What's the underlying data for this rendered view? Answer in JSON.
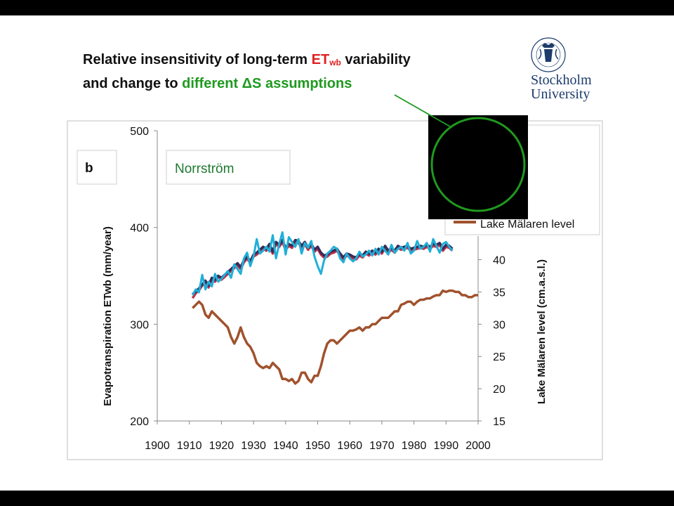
{
  "title": {
    "line1_prefix": "Relative insensitivity of long-term ",
    "line1_et": "ET",
    "line1_sub": "wb",
    "line1_suffix": " variability",
    "line2_prefix": "and change to ",
    "line2_green": "different ΔS assumptions"
  },
  "logo": {
    "line1": "Stockholm",
    "line2": "University",
    "seal_text": "UNIVERSITET · STOCKHOLMS"
  },
  "colors": {
    "et_dark": "#3a2a55",
    "et_red": "#c0304a",
    "et_cyan": "#1fb0d8",
    "lake": "#a0522d",
    "accent_green": "#1f9a1f"
  },
  "chart_data": {
    "type": "line",
    "panel_label": "b",
    "station_label": "Norrström",
    "xlabel": "",
    "ylabel_left": "Evapotranspiration ETwb (mm/year)",
    "ylabel_right": "Lake Mälaren level (cm.a.s.l.)",
    "xlim": [
      1900,
      2000
    ],
    "ylim_left": [
      200,
      500
    ],
    "ylim_right": [
      15,
      60
    ],
    "x_ticks": [
      1900,
      1910,
      1920,
      1930,
      1940,
      1950,
      1960,
      1970,
      1980,
      1990,
      2000
    ],
    "y_left_ticks": [
      200,
      300,
      400,
      500
    ],
    "y_right_ticks": [
      15,
      20,
      25,
      30,
      35,
      40
    ],
    "legend_visible_entry": "Lake Mälaren level",
    "series": [
      {
        "axis": "left",
        "color": "#c0304a",
        "x": [
          1911,
          1912,
          1913,
          1914,
          1915,
          1916,
          1917,
          1918,
          1919,
          1920,
          1921,
          1922,
          1923,
          1924,
          1925,
          1926,
          1927,
          1928,
          1929,
          1930,
          1931,
          1932,
          1933,
          1934,
          1935,
          1936,
          1937,
          1938,
          1939,
          1940,
          1941,
          1942,
          1943,
          1944,
          1945,
          1946,
          1947,
          1948,
          1949,
          1950,
          1951,
          1952,
          1953,
          1954,
          1955,
          1956,
          1957,
          1958,
          1959,
          1960,
          1961,
          1962,
          1963,
          1964,
          1965,
          1966,
          1967,
          1968,
          1969,
          1970,
          1971,
          1972,
          1973,
          1974,
          1975,
          1976,
          1977,
          1978,
          1979,
          1980,
          1981,
          1982,
          1983,
          1984,
          1985,
          1986,
          1987,
          1988,
          1989,
          1990,
          1991,
          1992
        ],
        "values": [
          327,
          332,
          335,
          340,
          343,
          338,
          347,
          344,
          349,
          346,
          349,
          352,
          355,
          358,
          361,
          357,
          364,
          368,
          363,
          370,
          372,
          375,
          378,
          376,
          381,
          373,
          383,
          380,
          385,
          377,
          381,
          379,
          385,
          384,
          379,
          383,
          377,
          381,
          375,
          378,
          372,
          369,
          370,
          373,
          374,
          376,
          371,
          367,
          371,
          370,
          368,
          367,
          371,
          369,
          373,
          371,
          374,
          372,
          376,
          373,
          379,
          374,
          377,
          374,
          379,
          377,
          378,
          379,
          376,
          377,
          378,
          379,
          378,
          380,
          378,
          381,
          380,
          382,
          376,
          380,
          379,
          376
        ]
      },
      {
        "axis": "left",
        "color": "#3a2a55",
        "x": [
          1911,
          1912,
          1913,
          1914,
          1915,
          1916,
          1917,
          1918,
          1919,
          1920,
          1921,
          1922,
          1923,
          1924,
          1925,
          1926,
          1927,
          1928,
          1929,
          1930,
          1931,
          1932,
          1933,
          1934,
          1935,
          1936,
          1937,
          1938,
          1939,
          1940,
          1941,
          1942,
          1943,
          1944,
          1945,
          1946,
          1947,
          1948,
          1949,
          1950,
          1951,
          1952,
          1953,
          1954,
          1955,
          1956,
          1957,
          1958,
          1959,
          1960,
          1961,
          1962,
          1963,
          1964,
          1965,
          1966,
          1967,
          1968,
          1969,
          1970,
          1971,
          1972,
          1973,
          1974,
          1975,
          1976,
          1977,
          1978,
          1979,
          1980,
          1981,
          1982,
          1983,
          1984,
          1985,
          1986,
          1987,
          1988,
          1989,
          1990,
          1991,
          1992
        ],
        "values": [
          331,
          334,
          337,
          341,
          345,
          340,
          348,
          346,
          350,
          348,
          351,
          354,
          357,
          360,
          363,
          359,
          366,
          370,
          365,
          372,
          374,
          377,
          380,
          378,
          383,
          375,
          385,
          382,
          387,
          379,
          383,
          381,
          387,
          386,
          381,
          385,
          379,
          383,
          377,
          380,
          374,
          371,
          372,
          375,
          376,
          378,
          373,
          369,
          373,
          372,
          370,
          369,
          373,
          371,
          375,
          373,
          376,
          374,
          378,
          375,
          381,
          376,
          379,
          376,
          381,
          379,
          380,
          381,
          378,
          379,
          380,
          381,
          380,
          382,
          380,
          383,
          382,
          384,
          378,
          382,
          381,
          378
        ]
      },
      {
        "axis": "left",
        "color": "#1fb0d8",
        "x": [
          1911,
          1912,
          1913,
          1914,
          1915,
          1916,
          1917,
          1918,
          1919,
          1920,
          1921,
          1922,
          1923,
          1924,
          1925,
          1926,
          1927,
          1928,
          1929,
          1930,
          1931,
          1932,
          1933,
          1934,
          1935,
          1936,
          1937,
          1938,
          1939,
          1940,
          1941,
          1942,
          1943,
          1944,
          1945,
          1946,
          1947,
          1948,
          1949,
          1950,
          1951,
          1952,
          1953,
          1954,
          1955,
          1956,
          1957,
          1958,
          1959,
          1960,
          1961,
          1962,
          1963,
          1964,
          1965,
          1966,
          1967,
          1968,
          1969,
          1970,
          1971,
          1972,
          1973,
          1974,
          1975,
          1976,
          1977,
          1978,
          1979,
          1980,
          1981,
          1982,
          1983,
          1984,
          1985,
          1986,
          1987,
          1988,
          1989,
          1990,
          1991,
          1992
        ],
        "values": [
          330,
          336,
          333,
          351,
          336,
          344,
          339,
          352,
          344,
          347,
          351,
          355,
          348,
          362,
          357,
          352,
          368,
          374,
          360,
          370,
          388,
          373,
          376,
          380,
          375,
          392,
          368,
          383,
          395,
          372,
          390,
          385,
          380,
          388,
          373,
          384,
          379,
          386,
          370,
          360,
          352,
          366,
          373,
          376,
          380,
          378,
          368,
          364,
          373,
          368,
          365,
          368,
          375,
          370,
          372,
          376,
          371,
          378,
          372,
          380,
          376,
          372,
          382,
          374,
          378,
          380,
          376,
          384,
          373,
          376,
          386,
          378,
          380,
          384,
          375,
          388,
          381,
          374,
          383,
          385,
          380,
          376
        ]
      },
      {
        "axis": "right",
        "color": "#a0522d",
        "name": "Lake Mälaren level",
        "x": [
          1911,
          1912,
          1913,
          1914,
          1915,
          1916,
          1917,
          1918,
          1919,
          1920,
          1921,
          1922,
          1923,
          1924,
          1925,
          1926,
          1927,
          1928,
          1929,
          1930,
          1931,
          1932,
          1933,
          1934,
          1935,
          1936,
          1937,
          1938,
          1939,
          1940,
          1941,
          1942,
          1943,
          1944,
          1945,
          1946,
          1947,
          1948,
          1949,
          1950,
          1951,
          1952,
          1953,
          1954,
          1955,
          1956,
          1957,
          1958,
          1959,
          1960,
          1961,
          1962,
          1963,
          1964,
          1965,
          1966,
          1967,
          1968,
          1969,
          1970,
          1971,
          1972,
          1973,
          1974,
          1975,
          1976,
          1977,
          1978,
          1979,
          1980,
          1981,
          1982,
          1983,
          1984,
          1985,
          1986,
          1987,
          1988,
          1989,
          1990,
          1991,
          1992,
          1993,
          1994,
          1995,
          1996,
          1997,
          1998,
          1999,
          2000
        ],
        "values": [
          32.5,
          33.0,
          33.5,
          33.0,
          31.5,
          31.0,
          32.0,
          31.5,
          31.0,
          30.5,
          30.0,
          29.5,
          28.0,
          27.0,
          28.0,
          29.5,
          28.0,
          27.0,
          26.5,
          25.5,
          24.0,
          23.5,
          23.2,
          23.5,
          23.2,
          24.0,
          23.5,
          23.0,
          21.5,
          21.5,
          21.2,
          21.5,
          20.8,
          21.2,
          22.5,
          22.5,
          21.5,
          21.0,
          22.0,
          22.0,
          23.5,
          25.5,
          27.0,
          27.5,
          27.5,
          27.0,
          27.5,
          28.0,
          28.5,
          29.0,
          29.0,
          29.2,
          29.5,
          29.0,
          29.5,
          29.5,
          30.0,
          30.0,
          30.5,
          31.0,
          31.0,
          31.0,
          31.5,
          32.0,
          32.0,
          33.0,
          33.2,
          33.5,
          33.5,
          33.0,
          33.5,
          33.8,
          33.8,
          34.0,
          34.0,
          34.3,
          34.5,
          34.5,
          35.2,
          35.0,
          35.2,
          35.2,
          35.0,
          35.0,
          34.5,
          34.5,
          34.2,
          34.2,
          34.5,
          34.5
        ]
      }
    ]
  }
}
